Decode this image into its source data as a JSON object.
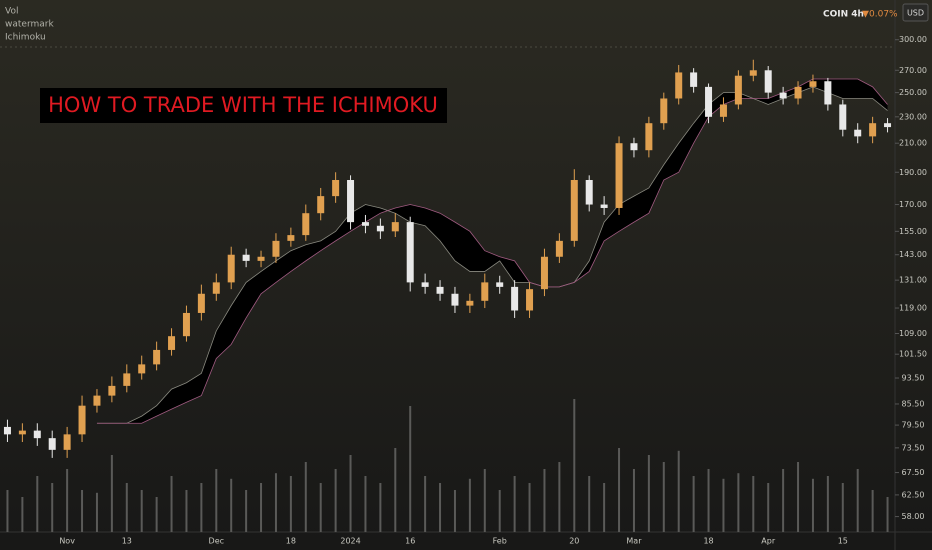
{
  "chart_data": {
    "type": "candlestick",
    "title": "HOW TO TRADE WITH THE ICHIMOKU",
    "indicators": [
      "Vol",
      "watermark",
      "Ichimoku"
    ],
    "symbol": "COIN 4h",
    "change": "0.07%",
    "currency": "USD",
    "yscale": "log",
    "ylim": [
      55,
      344
    ],
    "yticks": [
      {
        "value": 300,
        "label": "300.00"
      },
      {
        "value": 270,
        "label": "270.00"
      },
      {
        "value": 250,
        "label": "250.00"
      },
      {
        "value": 230,
        "label": "230.00"
      },
      {
        "value": 210,
        "label": "210.00"
      },
      {
        "value": 190,
        "label": "190.00"
      },
      {
        "value": 170,
        "label": "170.00"
      },
      {
        "value": 155,
        "label": "155.00"
      },
      {
        "value": 143,
        "label": "143.00"
      },
      {
        "value": 131,
        "label": "131.00"
      },
      {
        "value": 119,
        "label": "119.00"
      },
      {
        "value": 109,
        "label": "109.00"
      },
      {
        "value": 101.5,
        "label": "101.50"
      },
      {
        "value": 93.5,
        "label": "93.50"
      },
      {
        "value": 85.5,
        "label": "85.50"
      },
      {
        "value": 79.5,
        "label": "79.50"
      },
      {
        "value": 73.5,
        "label": "73.50"
      },
      {
        "value": 67.5,
        "label": "67.50"
      },
      {
        "value": 62.5,
        "label": "62.50"
      },
      {
        "value": 58,
        "label": "58.00"
      }
    ],
    "categories": [
      null,
      null,
      null,
      null,
      "Nov",
      null,
      null,
      null,
      "13",
      null,
      null,
      null,
      null,
      null,
      "Dec",
      null,
      null,
      null,
      null,
      "18",
      null,
      null,
      null,
      "2024",
      null,
      null,
      null,
      "16",
      null,
      null,
      null,
      null,
      null,
      "Feb",
      null,
      null,
      null,
      null,
      "20",
      null,
      null,
      null,
      "Mar",
      null,
      null,
      null,
      null,
      "18",
      null,
      null,
      null,
      "Apr",
      null,
      null,
      null,
      null,
      "15",
      null,
      null,
      null
    ],
    "up_color": "#e0a050",
    "down_color": "#e8e8e8",
    "open": [
      79,
      77,
      78,
      76,
      73,
      77,
      85,
      88,
      91,
      95,
      98,
      103,
      108,
      117,
      125,
      130,
      143,
      140,
      142,
      150,
      153,
      165,
      175,
      185,
      160,
      158,
      155,
      160,
      130,
      128,
      125,
      120,
      122,
      130,
      128,
      118,
      127,
      142,
      150,
      185,
      170,
      168,
      210,
      205,
      225,
      245,
      268,
      255,
      230,
      240,
      265,
      270,
      250,
      245,
      255,
      260,
      240,
      220,
      215,
      225
    ],
    "high": [
      81,
      80,
      80,
      78,
      79,
      88,
      90,
      94,
      98,
      101,
      106,
      111,
      120,
      129,
      134,
      147,
      146,
      145,
      154,
      157,
      170,
      180,
      190,
      188,
      164,
      162,
      165,
      163,
      134,
      131,
      128,
      125,
      134,
      133,
      131,
      130,
      146,
      154,
      192,
      188,
      175,
      215,
      214,
      230,
      250,
      275,
      272,
      258,
      246,
      270,
      280,
      274,
      255,
      260,
      266,
      263,
      244,
      225,
      230,
      229
    ],
    "low": [
      75,
      75,
      74,
      71,
      71,
      75,
      83,
      86,
      89,
      93,
      96,
      101,
      106,
      114,
      122,
      127,
      137,
      137,
      139,
      147,
      150,
      161,
      171,
      156,
      154,
      151,
      152,
      126,
      125,
      122,
      117,
      117,
      119,
      125,
      115,
      115,
      124,
      139,
      147,
      166,
      164,
      164,
      200,
      200,
      220,
      240,
      250,
      225,
      226,
      236,
      260,
      245,
      240,
      240,
      250,
      235,
      215,
      210,
      210,
      218
    ],
    "close": [
      77,
      78,
      76,
      73,
      77,
      85,
      88,
      91,
      95,
      98,
      103,
      108,
      117,
      125,
      130,
      143,
      140,
      142,
      150,
      153,
      165,
      175,
      185,
      160,
      158,
      155,
      160,
      130,
      128,
      125,
      120,
      122,
      130,
      128,
      118,
      127,
      142,
      150,
      185,
      170,
      168,
      210,
      205,
      225,
      245,
      268,
      255,
      230,
      240,
      265,
      270,
      250,
      245,
      255,
      260,
      240,
      220,
      215,
      225,
      222
    ],
    "span_a": [
      null,
      null,
      null,
      null,
      null,
      null,
      80,
      80,
      80,
      82,
      85,
      90,
      92,
      95,
      110,
      120,
      130,
      135,
      140,
      145,
      148,
      150,
      155,
      165,
      170,
      168,
      165,
      160,
      158,
      150,
      140,
      135,
      135,
      140,
      130,
      130,
      128,
      128,
      130,
      140,
      160,
      170,
      175,
      180,
      195,
      210,
      225,
      240,
      250,
      250,
      245,
      240,
      245,
      250,
      255,
      250,
      245,
      245,
      245,
      235
    ],
    "span_b": [
      null,
      null,
      null,
      null,
      null,
      null,
      80,
      80,
      80,
      80,
      82,
      84,
      86,
      88,
      100,
      105,
      115,
      125,
      130,
      135,
      140,
      145,
      150,
      155,
      160,
      165,
      168,
      170,
      168,
      165,
      160,
      155,
      145,
      142,
      140,
      130,
      128,
      128,
      130,
      135,
      150,
      155,
      160,
      165,
      185,
      190,
      210,
      230,
      240,
      245,
      245,
      245,
      250,
      255,
      262,
      262,
      262,
      262,
      255,
      240
    ],
    "volume": [
      30,
      25,
      40,
      35,
      45,
      30,
      28,
      55,
      35,
      30,
      25,
      40,
      30,
      35,
      45,
      38,
      30,
      35,
      42,
      40,
      50,
      35,
      45,
      55,
      40,
      35,
      60,
      90,
      40,
      35,
      30,
      38,
      45,
      30,
      40,
      35,
      45,
      50,
      95,
      40,
      35,
      60,
      45,
      55,
      50,
      58,
      40,
      45,
      38,
      42,
      40,
      35,
      45,
      50,
      38,
      40,
      35,
      45,
      30,
      25
    ],
    "volume_ylim": [
      0,
      100
    ],
    "volume_color": "#5a5a58",
    "cloud_color": "#000000"
  }
}
